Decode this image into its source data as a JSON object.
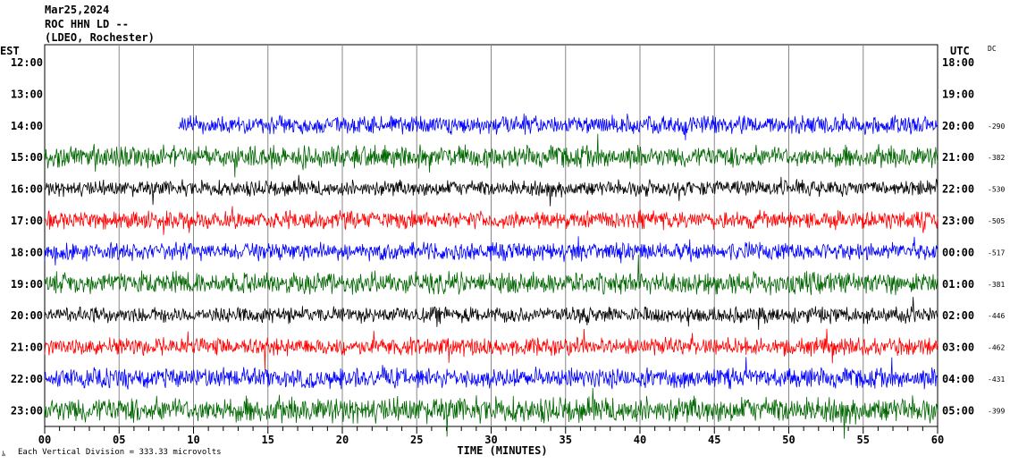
{
  "header": {
    "date": "Mar25,2024",
    "station": "ROC HHN LD --",
    "network": "(LDEO, Rochester)"
  },
  "chart_data": {
    "type": "line",
    "title": "ROC HHN LD -- Mar25,2024",
    "left_axis_label": "EST",
    "right_axis_label": "UTC",
    "dc_label": "DC",
    "xlabel": "TIME (MINUTES)",
    "xlim": [
      0,
      60
    ],
    "x_ticks": [
      "00",
      "05",
      "10",
      "15",
      "20",
      "25",
      "30",
      "35",
      "40",
      "45",
      "50",
      "55",
      "60"
    ],
    "scale_note": "Each Vertical Division =  333.33 microvolts",
    "corner_mark": "ﾑ",
    "rows": [
      {
        "est": "12:00",
        "utc": "18:00",
        "dc": "",
        "color": "#000000",
        "start_minute": null,
        "amplitude": 0
      },
      {
        "est": "13:00",
        "utc": "19:00",
        "dc": "",
        "color": "#ff0000",
        "start_minute": null,
        "amplitude": 0
      },
      {
        "est": "14:00",
        "utc": "20:00",
        "dc": "-290",
        "color": "#0000ff",
        "start_minute": 9,
        "amplitude": 9
      },
      {
        "est": "15:00",
        "utc": "21:00",
        "dc": "-382",
        "color": "#006600",
        "start_minute": 0,
        "amplitude": 11
      },
      {
        "est": "16:00",
        "utc": "22:00",
        "dc": "-530",
        "color": "#000000",
        "start_minute": 0,
        "amplitude": 8
      },
      {
        "est": "17:00",
        "utc": "23:00",
        "dc": "-505",
        "color": "#ff0000",
        "start_minute": 0,
        "amplitude": 9
      },
      {
        "est": "18:00",
        "utc": "00:00",
        "dc": "-517",
        "color": "#0000ff",
        "start_minute": 0,
        "amplitude": 9
      },
      {
        "est": "19:00",
        "utc": "01:00",
        "dc": "-381",
        "color": "#006600",
        "start_minute": 0,
        "amplitude": 11
      },
      {
        "est": "20:00",
        "utc": "02:00",
        "dc": "-446",
        "color": "#000000",
        "start_minute": 0,
        "amplitude": 8
      },
      {
        "est": "21:00",
        "utc": "03:00",
        "dc": "-462",
        "color": "#ff0000",
        "start_minute": 0,
        "amplitude": 9
      },
      {
        "est": "22:00",
        "utc": "04:00",
        "dc": "-431",
        "color": "#0000ff",
        "start_minute": 0,
        "amplitude": 10
      },
      {
        "est": "23:00",
        "utc": "05:00",
        "dc": "-399",
        "color": "#006600",
        "start_minute": 0,
        "amplitude": 13
      }
    ]
  }
}
